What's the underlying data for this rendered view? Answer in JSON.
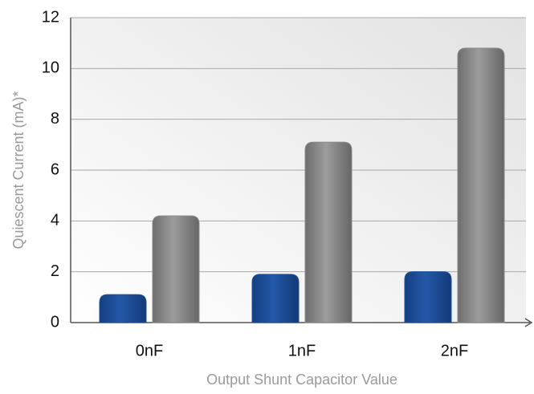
{
  "chart_data": {
    "type": "bar",
    "x_label": "Output Shunt Capacitor Value",
    "y_label": "Quiescent Current (mA)*",
    "categories": [
      "0nF",
      "1nF",
      "2nF"
    ],
    "series": [
      {
        "color": "#1d4f9a",
        "values": [
          1.1,
          1.9,
          2.0
        ]
      },
      {
        "color": "#8a8a8a",
        "values": [
          4.2,
          7.1,
          10.8
        ]
      }
    ],
    "ylim": [
      0,
      12
    ],
    "yticks": [
      0,
      2,
      4,
      6,
      8,
      10,
      12
    ],
    "grid": true
  }
}
